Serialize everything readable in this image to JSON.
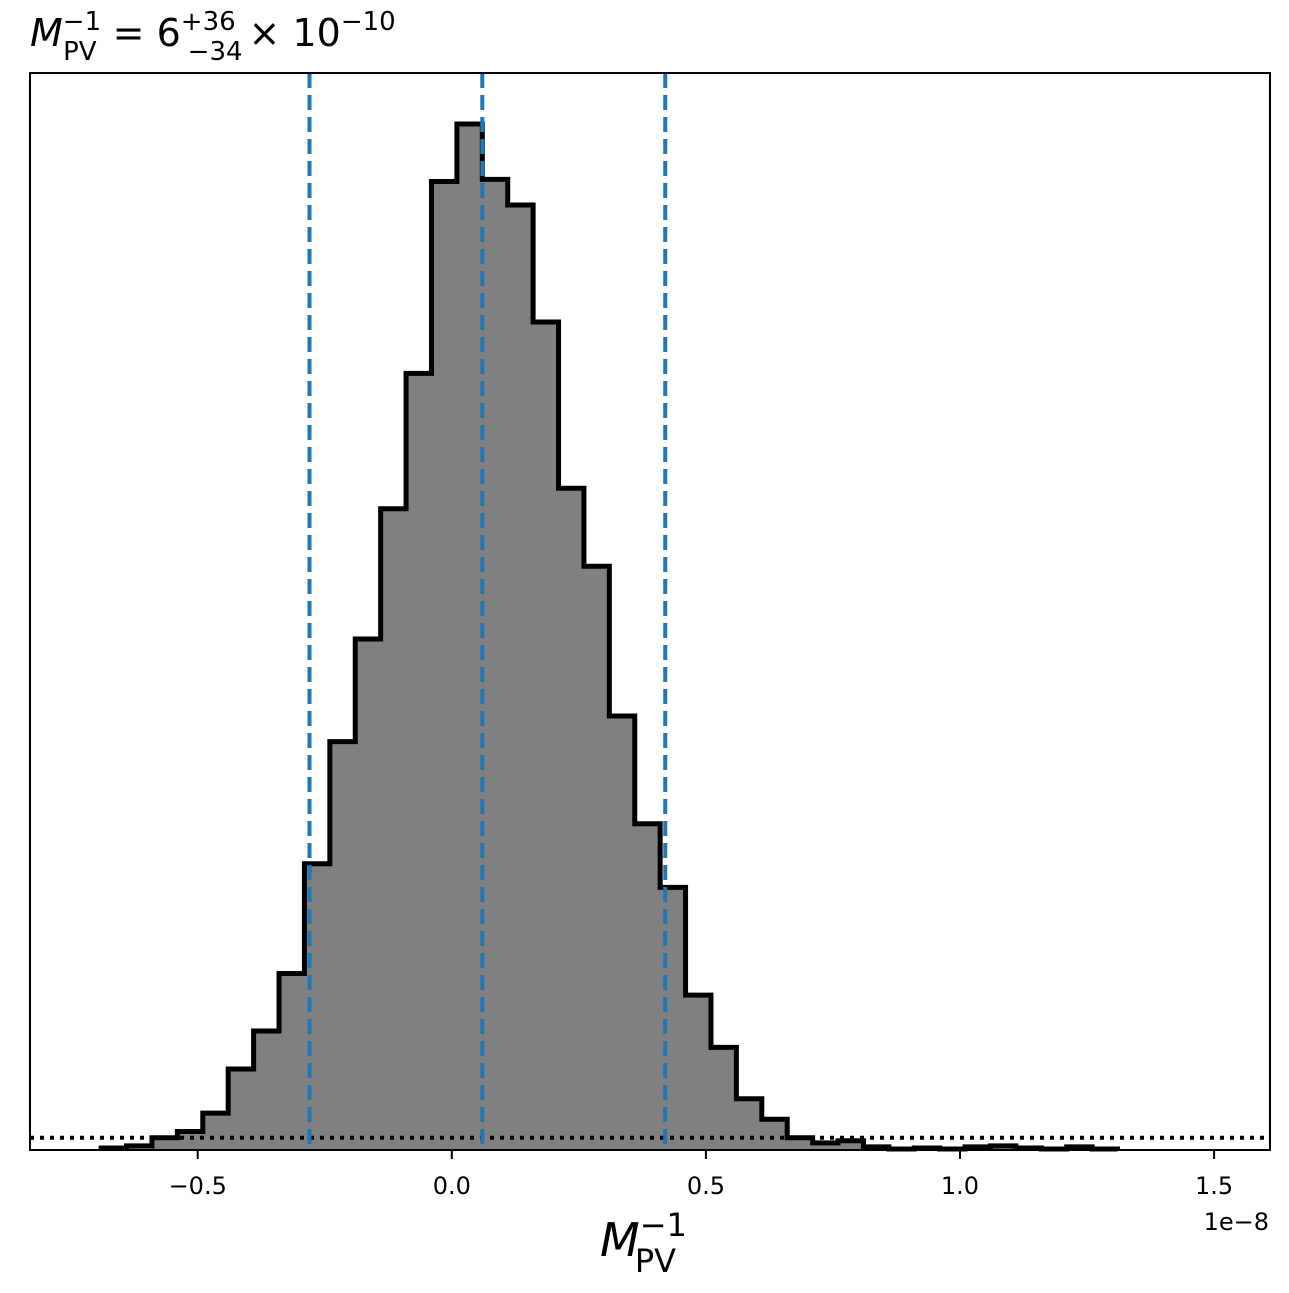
{
  "chart_data": {
    "type": "histogram",
    "title": {
      "symbol": "M",
      "symbol_sup": "−1",
      "symbol_sub": "PV",
      "equals": " = 6",
      "upper": "+36",
      "lower": "−34",
      "times": "× 10",
      "exponent": "−10"
    },
    "xlabel": {
      "symbol": "M",
      "sup": "−1",
      "sub": "PV"
    },
    "x_offset_label": "1e−8",
    "xlim": [
      -0.83,
      1.61
    ],
    "ylim": [
      0,
      1.0
    ],
    "x_ticks": [
      -0.5,
      0.0,
      0.5,
      1.0,
      1.5
    ],
    "x_tick_labels": [
      "−0.5",
      "0.0",
      "0.5",
      "1.0",
      "1.5"
    ],
    "bins": {
      "edges": [
        -0.69,
        -0.64,
        -0.59,
        -0.54,
        -0.49,
        -0.44,
        -0.39,
        -0.34,
        -0.29,
        -0.24,
        -0.19,
        -0.14,
        -0.09,
        -0.04,
        0.01,
        0.06,
        0.11,
        0.16,
        0.21,
        0.26,
        0.31,
        0.36,
        0.41,
        0.46,
        0.51,
        0.56,
        0.61,
        0.66,
        0.71,
        0.76,
        0.81,
        0.86,
        0.91,
        0.96,
        1.01,
        1.06,
        1.11,
        1.16,
        1.21,
        1.26,
        1.31
      ],
      "counts": [
        0.002,
        0.004,
        0.012,
        0.018,
        0.036,
        0.079,
        0.116,
        0.172,
        0.279,
        0.398,
        0.498,
        0.625,
        0.757,
        0.944,
        1.0,
        0.946,
        0.921,
        0.807,
        0.645,
        0.569,
        0.423,
        0.318,
        0.256,
        0.151,
        0.1,
        0.05,
        0.03,
        0.012,
        0.007,
        0.009,
        0.003,
        0.001,
        0.002,
        0.001,
        0.003,
        0.004,
        0.002,
        0.001,
        0.003,
        0.001
      ]
    },
    "quantiles": [
      -0.28,
      0.06,
      0.42
    ],
    "reference_y": 0.012,
    "colors": {
      "fill": "#808080",
      "edge": "#000000",
      "quantile": "#1f77b4",
      "reference": "#000000"
    },
    "grid": false,
    "legend": "none"
  }
}
